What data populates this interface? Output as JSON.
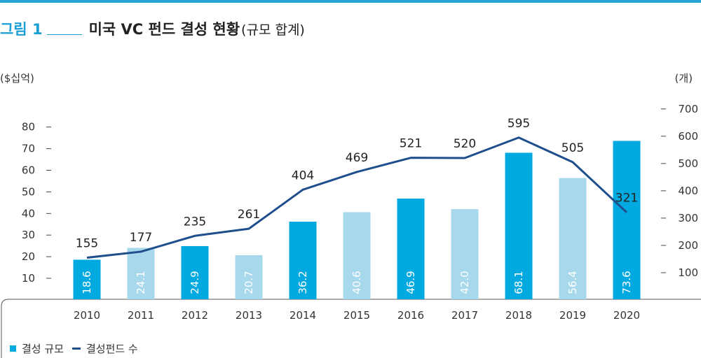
{
  "header": {
    "fig_label": "그림 1",
    "title": "미국 VC 펀드 결성 현황",
    "subtitle": "(규모 합계)"
  },
  "units": {
    "left": "($십억)",
    "right": "(개)"
  },
  "legend": {
    "bar_label": "결성 규모",
    "line_label": "결성펀드 수"
  },
  "colors": {
    "bar_dark": "#00a9e0",
    "bar_light": "#a8d8ec",
    "line": "#1f4e8c",
    "accent": "#1aa0d6"
  },
  "chart_data": {
    "type": "bar+line",
    "categories": [
      "2010",
      "2011",
      "2012",
      "2013",
      "2014",
      "2015",
      "2016",
      "2017",
      "2018",
      "2019",
      "2020"
    ],
    "series": [
      {
        "name": "결성 규모",
        "type": "bar",
        "axis": "left",
        "values": [
          18.6,
          24.1,
          24.9,
          20.7,
          36.2,
          40.6,
          46.9,
          42.0,
          68.1,
          56.4,
          73.6
        ],
        "labels": [
          "18.6",
          "24.1",
          "24.9",
          "20.7",
          "36.2",
          "40.6",
          "46.9",
          "42.0",
          "68.1",
          "56.4",
          "73.6"
        ]
      },
      {
        "name": "결성펀드 수",
        "type": "line",
        "axis": "right",
        "values": [
          155,
          177,
          235,
          261,
          404,
          469,
          521,
          520,
          595,
          505,
          321
        ]
      }
    ],
    "left_axis": {
      "ticks": [
        10,
        20,
        30,
        40,
        50,
        60,
        70,
        80
      ]
    },
    "right_axis": {
      "ticks": [
        100,
        200,
        300,
        400,
        500,
        600,
        700
      ]
    },
    "grid": false,
    "legend_position": "bottom-left"
  }
}
